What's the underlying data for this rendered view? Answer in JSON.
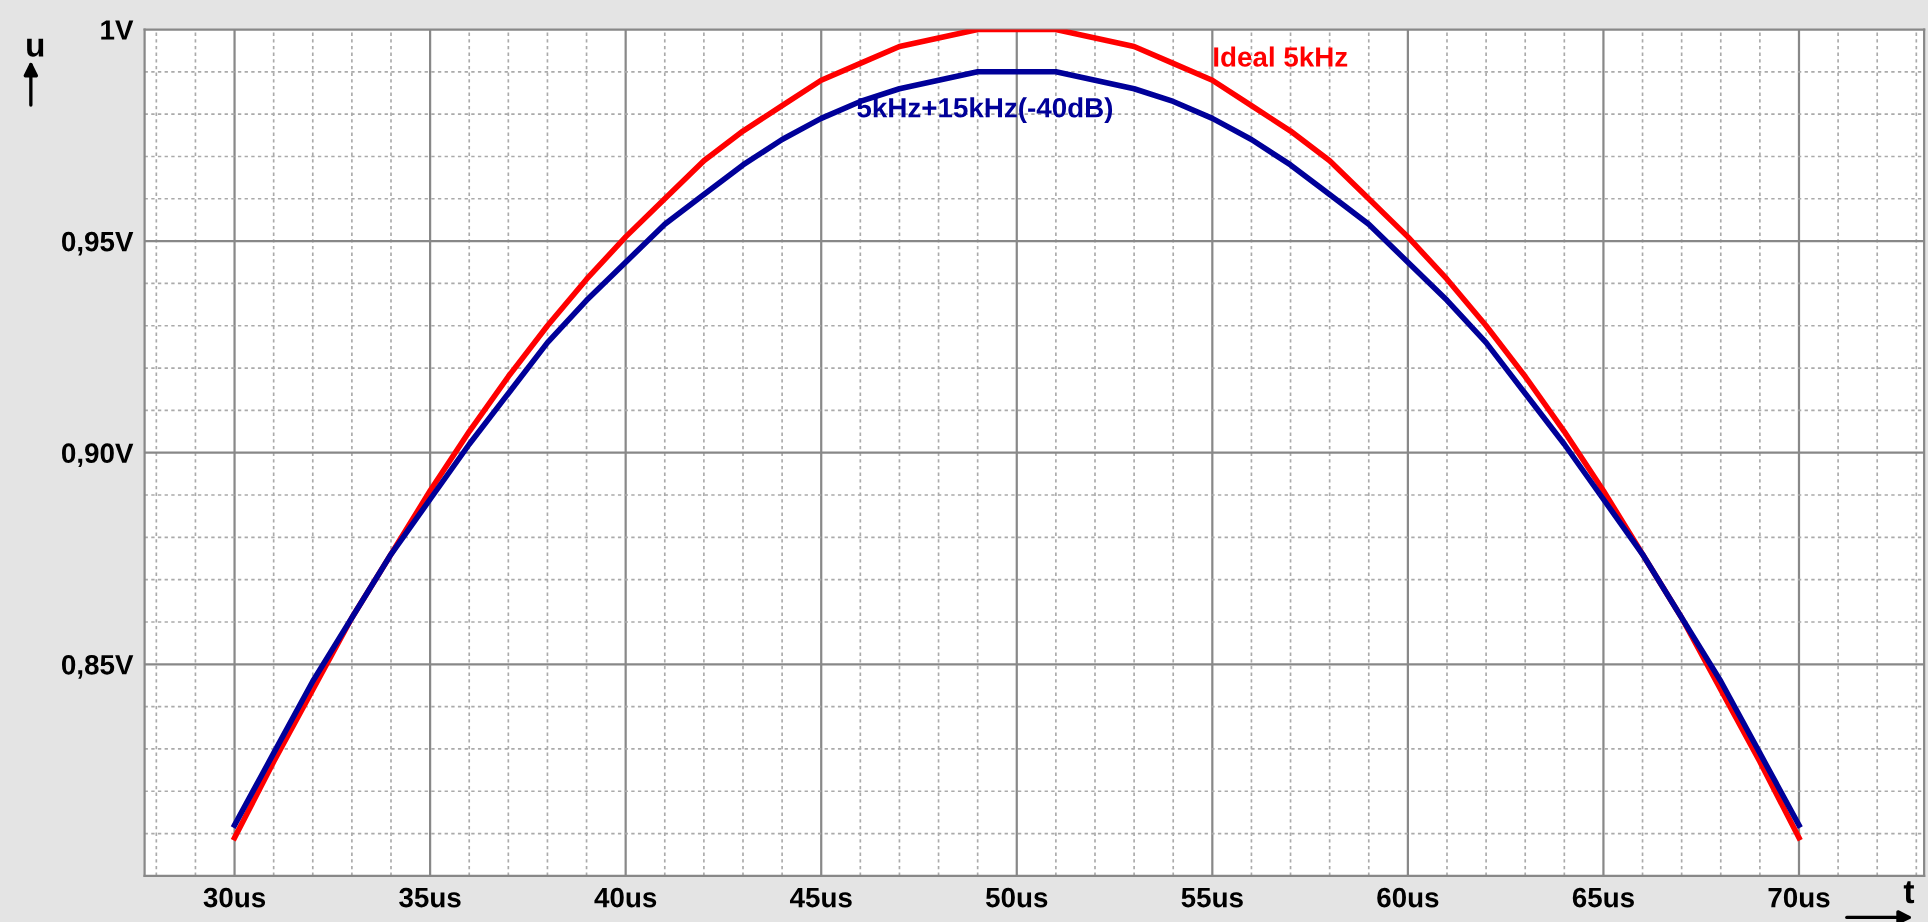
{
  "chart_data": {
    "type": "line",
    "xlabel": "t",
    "ylabel": "u",
    "x": [
      30,
      31,
      32,
      33,
      34,
      35,
      36,
      37,
      38,
      39,
      40,
      41,
      42,
      43,
      44,
      45,
      46,
      47,
      48,
      49,
      50,
      51,
      52,
      53,
      54,
      55,
      56,
      57,
      58,
      59,
      60,
      61,
      62,
      63,
      64,
      65,
      66,
      67,
      68,
      69,
      70
    ],
    "series": [
      {
        "name": "Ideal 5kHz",
        "color": "#ff0000",
        "values": [
          0.809,
          0.827,
          0.844,
          0.861,
          0.876,
          0.891,
          0.905,
          0.918,
          0.93,
          0.941,
          0.951,
          0.96,
          0.969,
          0.976,
          0.982,
          0.988,
          0.992,
          0.996,
          0.998,
          1.0,
          1.0,
          1.0,
          0.998,
          0.996,
          0.992,
          0.988,
          0.982,
          0.976,
          0.969,
          0.96,
          0.951,
          0.941,
          0.93,
          0.918,
          0.905,
          0.891,
          0.876,
          0.861,
          0.844,
          0.827,
          0.809
        ]
      },
      {
        "name": "5kHz+15kHz(-40dB)",
        "color": "#000099",
        "values": [
          0.812,
          0.829,
          0.846,
          0.861,
          0.876,
          0.889,
          0.902,
          0.914,
          0.926,
          0.936,
          0.945,
          0.954,
          0.961,
          0.968,
          0.974,
          0.979,
          0.983,
          0.986,
          0.988,
          0.99,
          0.99,
          0.99,
          0.988,
          0.986,
          0.983,
          0.979,
          0.974,
          0.968,
          0.961,
          0.954,
          0.945,
          0.936,
          0.926,
          0.914,
          0.902,
          0.889,
          0.876,
          0.861,
          0.846,
          0.829,
          0.812
        ]
      }
    ],
    "xlim": [
      27.7,
      73.2
    ],
    "ylim": [
      0.8,
      1.0
    ],
    "xticks": [
      {
        "value": 30,
        "label": "30us"
      },
      {
        "value": 35,
        "label": "35us"
      },
      {
        "value": 40,
        "label": "40us"
      },
      {
        "value": 45,
        "label": "45us"
      },
      {
        "value": 50,
        "label": "50us"
      },
      {
        "value": 55,
        "label": "55us"
      },
      {
        "value": 60,
        "label": "60us"
      },
      {
        "value": 65,
        "label": "65us"
      },
      {
        "value": 70,
        "label": "70us"
      }
    ],
    "yticks": [
      {
        "value": 0.85,
        "label": "0,85V"
      },
      {
        "value": 0.9,
        "label": "0,90V"
      },
      {
        "value": 0.95,
        "label": "0,95V"
      },
      {
        "value": 1.0,
        "label": "1V"
      }
    ],
    "grid": true,
    "legend": false,
    "marker": "none",
    "line_style": "solid"
  }
}
